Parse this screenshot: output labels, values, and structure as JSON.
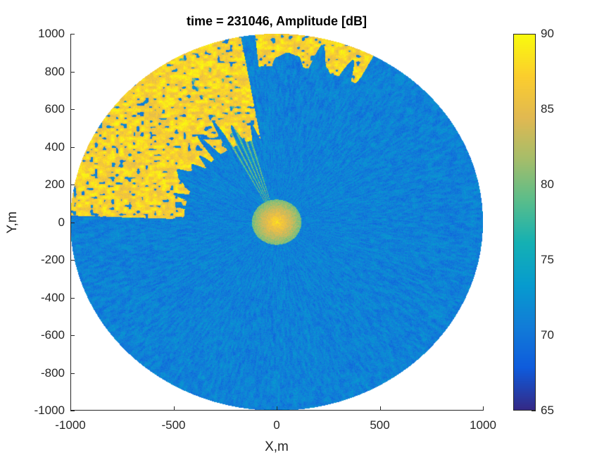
{
  "chart_data": {
    "type": "heatmap",
    "title": "time = 231046, Amplitude [dB]",
    "xlabel": "X,m",
    "ylabel": "Y,m",
    "xlim": [
      -1000,
      1000
    ],
    "ylim": [
      -1000,
      1000
    ],
    "xticks": [
      -1000,
      -500,
      0,
      500,
      1000
    ],
    "yticks": [
      -1000,
      -800,
      -600,
      -400,
      -200,
      0,
      200,
      400,
      600,
      800,
      1000
    ],
    "colorbar": {
      "colormap": "parula",
      "clim": [
        65,
        90
      ],
      "ticks": [
        65,
        70,
        75,
        80,
        85,
        90
      ],
      "location": "right"
    },
    "domain_shape": "circle",
    "range_radius_m": 1000,
    "background_level_db": 71,
    "high_returns": [
      {
        "sector_deg": [
          100,
          178
        ],
        "range_m": [
          450,
          1000
        ],
        "level_db": [
          84,
          90
        ]
      },
      {
        "sector_deg": [
          62,
          96
        ],
        "range_m": [
          830,
          1000
        ],
        "level_db": [
          84,
          90
        ]
      },
      {
        "sector_deg": [
          0,
          360
        ],
        "range_m": [
          0,
          120
        ],
        "level_db": [
          80,
          88
        ]
      }
    ],
    "grid": false
  }
}
